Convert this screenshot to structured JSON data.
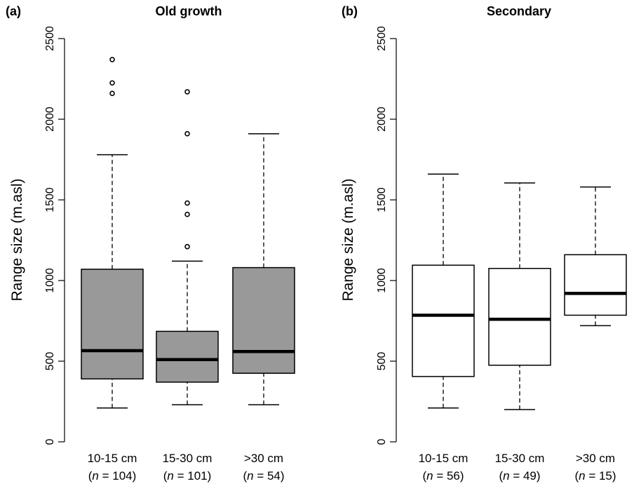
{
  "chart_data": [
    {
      "type": "boxplot",
      "panel_label": "(a)",
      "title": "Old growth",
      "ylabel": "Range size (m.asl)",
      "ylim": [
        0,
        2500
      ],
      "yticks": [
        0,
        500,
        1000,
        1500,
        2000,
        2500
      ],
      "box_fill": "#999999",
      "categories": [
        "10-15 cm",
        "15-30 cm",
        ">30 cm"
      ],
      "n_labels": [
        {
          "n": "n",
          "value": " = 104)"
        },
        {
          "n": "n",
          "value": " = 101)"
        },
        {
          "n": "n",
          "value": " = 54)"
        }
      ],
      "boxes": [
        {
          "whisker_low": 210,
          "q1": 390,
          "median": 565,
          "q3": 1070,
          "whisker_high": 1780,
          "outliers": [
            2160,
            2225,
            2370
          ]
        },
        {
          "whisker_low": 230,
          "q1": 370,
          "median": 510,
          "q3": 685,
          "whisker_high": 1120,
          "outliers": [
            1210,
            1410,
            1480,
            1910,
            2170
          ]
        },
        {
          "whisker_low": 230,
          "q1": 425,
          "median": 560,
          "q3": 1080,
          "whisker_high": 1910,
          "outliers": []
        }
      ]
    },
    {
      "type": "boxplot",
      "panel_label": "(b)",
      "title": "Secondary",
      "ylabel": "Range size (m.asl)",
      "ylim": [
        0,
        2500
      ],
      "yticks": [
        0,
        500,
        1000,
        1500,
        2000,
        2500
      ],
      "box_fill": "#ffffff",
      "categories": [
        "10-15 cm",
        "15-30 cm",
        ">30 cm"
      ],
      "n_labels": [
        {
          "n": "n",
          "value": " = 56)"
        },
        {
          "n": "n",
          "value": " = 49)"
        },
        {
          "n": "n",
          "value": " = 15)"
        }
      ],
      "boxes": [
        {
          "whisker_low": 210,
          "q1": 405,
          "median": 785,
          "q3": 1095,
          "whisker_high": 1660,
          "outliers": []
        },
        {
          "whisker_low": 200,
          "q1": 475,
          "median": 760,
          "q3": 1075,
          "whisker_high": 1605,
          "outliers": []
        },
        {
          "whisker_low": 720,
          "q1": 785,
          "median": 920,
          "q3": 1160,
          "whisker_high": 1580,
          "outliers": []
        }
      ]
    }
  ]
}
